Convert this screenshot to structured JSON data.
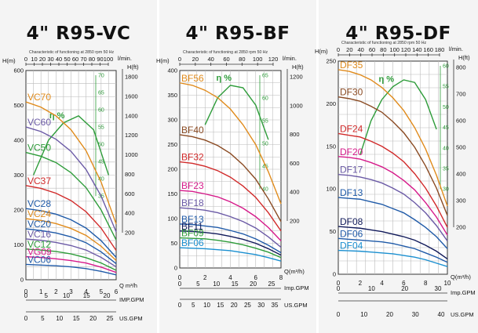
{
  "charts": [
    {
      "title": "4\"  R95-VC",
      "subtitle": "Characteristic of functioning at 2850 rpm 50 Hz",
      "h_m_label": "H(m)",
      "h_ft_label": "H(ft)",
      "lmin_label": "l/min.",
      "q_label": "Q m³/h",
      "imp_label": "IMP.GPM",
      "us_label": "US.GPM",
      "eta_label": "η %",
      "chart_data": {
        "type": "line",
        "title": "4\"  R95-VC",
        "x": [
          0,
          1,
          2,
          3,
          4,
          5,
          6
        ],
        "xlim": [
          0,
          6
        ],
        "ylim": [
          0,
          600
        ],
        "q_ticks": [
          "0",
          "1",
          "2",
          "3",
          "4",
          "5",
          "6"
        ],
        "h_ticks": [
          "0",
          "100",
          "200",
          "300",
          "400",
          "500",
          "600"
        ],
        "lmin_ticks": [
          "0",
          "10",
          "20",
          "30",
          "40",
          "50",
          "60",
          "70",
          "80",
          "90",
          "100"
        ],
        "hft_ticks": [
          "200",
          "400",
          "600",
          "800",
          "1000",
          "1200",
          "1400",
          "1600",
          "1800"
        ],
        "eff_ticks": [
          "35",
          "40",
          "45",
          "50",
          "55",
          "60",
          "65",
          "70"
        ],
        "imp_ticks": [
          "0",
          "5",
          "10",
          "15",
          "20"
        ],
        "us_ticks": [
          "0",
          "5",
          "10",
          "15",
          "20",
          "25"
        ],
        "series": [
          {
            "name": "VC70",
            "color": "#e08b1c",
            "values": [
              510,
              495,
              470,
              430,
              370,
              280,
              160
            ]
          },
          {
            "name": "VC60",
            "color": "#6b5aa6",
            "values": [
              438,
              425,
              403,
              368,
              316,
              240,
              137
            ]
          },
          {
            "name": "VC50",
            "color": "#2e9c3a",
            "values": [
              365,
              354,
              336,
              307,
              264,
              200,
              114
            ]
          },
          {
            "name": "VC37",
            "color": "#d12a2a",
            "values": [
              270,
              262,
              248,
              227,
              195,
              148,
              84
            ]
          },
          {
            "name": "VC28",
            "color": "#1f5aa8",
            "values": [
              204,
              198,
              188,
              172,
              148,
              112,
              64
            ]
          },
          {
            "name": "VC24",
            "color": "#e08b1c",
            "values": [
              175,
              170,
              161,
              147,
              127,
              96,
              55
            ]
          },
          {
            "name": "VC20",
            "color": "#1f5aa8",
            "values": [
              146,
              141,
              134,
              123,
              106,
              80,
              46
            ]
          },
          {
            "name": "VC16",
            "color": "#6b5aa6",
            "values": [
              117,
              113,
              107,
              98,
              85,
              64,
              37
            ]
          },
          {
            "name": "VC12",
            "color": "#2e9c3a",
            "values": [
              88,
              85,
              81,
              74,
              63,
              48,
              27
            ]
          },
          {
            "name": "VG09",
            "color": "#d61a8a",
            "values": [
              66,
              64,
              60,
              55,
              48,
              36,
              21
            ]
          },
          {
            "name": "VC06",
            "color": "#1f5aa8",
            "values": [
              44,
              42,
              40,
              37,
              32,
              24,
              14
            ]
          }
        ],
        "efficiency": {
          "color": "#2e9c3a",
          "x": [
            0.5,
            1.5,
            2.5,
            3.5,
            4.5,
            5.5
          ],
          "values": [
            300,
            400,
            450,
            470,
            430,
            300
          ]
        }
      }
    },
    {
      "title": "4\"  R95-BF",
      "subtitle": "Characteristic of functioning at 2850 rpm 50 Hz",
      "h_m_label": "H(m)",
      "h_ft_label": "H(ft)",
      "lmin_label": "l/min.",
      "q_label": "Q(m³/h)",
      "imp_label": "Imp.GPM",
      "us_label": "US.GPM",
      "eta_label": "η %",
      "chart_data": {
        "type": "line",
        "title": "4\"  R95-BF",
        "x": [
          0,
          1,
          2,
          3,
          4,
          5,
          6,
          7,
          8
        ],
        "xlim": [
          0,
          8
        ],
        "ylim": [
          0,
          400
        ],
        "q_ticks": [
          "0",
          "2",
          "4",
          "6",
          "8"
        ],
        "h_ticks": [
          "0",
          "50",
          "100",
          "150",
          "200",
          "250",
          "300",
          "350",
          "400"
        ],
        "lmin_ticks": [
          "0",
          "20",
          "40",
          "60",
          "80",
          "100",
          "120"
        ],
        "hft_ticks": [
          "200",
          "400",
          "600",
          "800",
          "1000",
          "1200"
        ],
        "eff_ticks": [
          "40",
          "45",
          "50",
          "55",
          "60",
          "65"
        ],
        "imp_ticks": [
          "0",
          "5",
          "10",
          "15",
          "20",
          "25"
        ],
        "us_ticks": [
          "0",
          "5",
          "10",
          "15",
          "20",
          "25",
          "30",
          "35"
        ],
        "series": [
          {
            "name": "BF56",
            "color": "#e08b1c",
            "values": [
              375,
              370,
              360,
              345,
              322,
              290,
              250,
              195,
              130
            ]
          },
          {
            "name": "BF40",
            "color": "#8a4a22",
            "values": [
              270,
              266,
              259,
              248,
              232,
              209,
              180,
              140,
              94
            ]
          },
          {
            "name": "BF32",
            "color": "#d12a2a",
            "values": [
              215,
              212,
              206,
              197,
              184,
              166,
              143,
              112,
              75
            ]
          },
          {
            "name": "BF23",
            "color": "#d61a8a",
            "values": [
              157,
              155,
              150,
              144,
              134,
              121,
              104,
              82,
              55
            ]
          },
          {
            "name": "BF18",
            "color": "#6b5aa6",
            "values": [
              122,
              120,
              117,
              112,
              104,
              94,
              81,
              63,
              42
            ]
          },
          {
            "name": "BF13",
            "color": "#1f5aa8",
            "values": [
              89,
              88,
              85,
              82,
              76,
              69,
              59,
              46,
              31
            ]
          },
          {
            "name": "BF11",
            "color": "#111a5a",
            "values": [
              75,
              74,
              72,
              69,
              64,
              58,
              50,
              39,
              26
            ]
          },
          {
            "name": "BF09",
            "color": "#2e9c3a",
            "values": [
              61,
              60,
              59,
              56,
              52,
              47,
              40,
              32,
              21
            ]
          },
          {
            "name": "BF06",
            "color": "#1a8fd0",
            "values": [
              41,
              40,
              39,
              37,
              35,
              31,
              27,
              21,
              14
            ]
          }
        ],
        "efficiency": {
          "color": "#2e9c3a",
          "x": [
            2,
            3,
            4,
            5,
            6,
            7
          ],
          "values": [
            290,
            345,
            370,
            365,
            330,
            260
          ]
        }
      }
    },
    {
      "title": "4\"  R95-DF",
      "subtitle": "Characteristic of functioning at 2850 rpm 50 Hz",
      "h_m_label": "H(m)",
      "h_ft_label": "H(ft)",
      "lmin_label": "l/min.",
      "q_label": "Q(m³/h)",
      "imp_label": "Imp.GPM",
      "us_label": "US.GPM",
      "eta_label": "η %",
      "chart_data": {
        "type": "line",
        "title": "4\"  R95-DF",
        "x": [
          0,
          1,
          2,
          3,
          4,
          5,
          6,
          7,
          8,
          9,
          10
        ],
        "xlim": [
          0,
          10
        ],
        "ylim": [
          0,
          250
        ],
        "q_ticks": [
          "0",
          "2",
          "4",
          "6",
          "8",
          "10"
        ],
        "h_ticks": [
          "0",
          "50",
          "100",
          "150",
          "200",
          "250"
        ],
        "lmin_ticks": [
          "0",
          "20",
          "40",
          "60",
          "80",
          "100",
          "120",
          "140",
          "160",
          "180"
        ],
        "hft_ticks": [
          "200",
          "300",
          "400",
          "500",
          "600",
          "700",
          "800"
        ],
        "eff_ticks": [
          "30",
          "35",
          "40",
          "45",
          "50",
          "55",
          "60"
        ],
        "imp_ticks": [
          "0",
          "10",
          "20",
          "30"
        ],
        "us_ticks": [
          "0",
          "10",
          "20",
          "30",
          "40"
        ],
        "series": [
          {
            "name": "DF35",
            "color": "#e08b1c",
            "values": [
              240,
              238,
              234,
              228,
              219,
              207,
              192,
              172,
              147,
              116,
              80
            ]
          },
          {
            "name": "DF30",
            "color": "#8a4a22",
            "values": [
              208,
              206,
              203,
              197,
              190,
              179,
              166,
              149,
              127,
              101,
              69
            ]
          },
          {
            "name": "DF24",
            "color": "#d12a2a",
            "values": [
              165,
              163,
              161,
              156,
              150,
              142,
              132,
              118,
              101,
              80,
              55
            ]
          },
          {
            "name": "DF20",
            "color": "#d61a8a",
            "values": [
              138,
              137,
              135,
              131,
              126,
              119,
              110,
              99,
              84,
              67,
              46
            ]
          },
          {
            "name": "DF17",
            "color": "#6b5aa6",
            "values": [
              117,
              116,
              114,
              111,
              107,
              101,
              94,
              84,
              72,
              57,
              39
            ]
          },
          {
            "name": "DF13",
            "color": "#1f5aa8",
            "values": [
              90,
              89,
              88,
              85,
              82,
              77,
              72,
              64,
              55,
              44,
              30
            ]
          },
          {
            "name": "DF08",
            "color": "#111a5a",
            "values": [
              56,
              55,
              54,
              52,
              50,
              47,
              44,
              40,
              34,
              27,
              18
            ]
          },
          {
            "name": "DF06",
            "color": "#1f5aa8",
            "values": [
              42,
              41,
              40,
              39,
              38,
              36,
              33,
              30,
              25,
              20,
              14
            ]
          },
          {
            "name": "DF04",
            "color": "#1a8fd0",
            "values": [
              28,
              27.5,
              27,
              26,
              25,
              24,
              22,
              20,
              17,
              13,
              9
            ]
          }
        ],
        "efficiency": {
          "color": "#2e9c3a",
          "x": [
            2,
            3,
            4,
            5,
            6,
            7,
            8,
            9
          ],
          "values": [
            140,
            180,
            205,
            220,
            228,
            225,
            205,
            170
          ]
        }
      }
    }
  ]
}
